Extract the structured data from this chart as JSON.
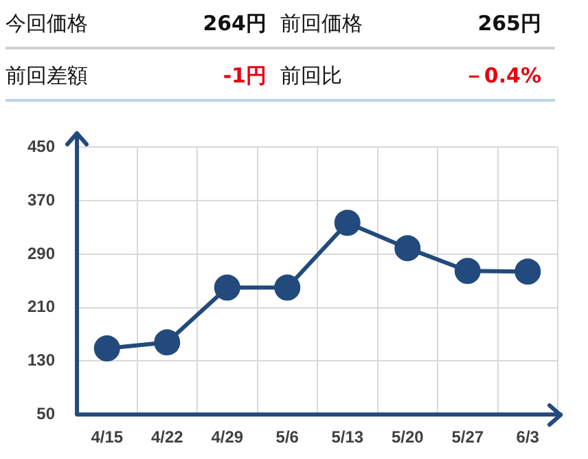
{
  "chart_data": {
    "type": "line",
    "annotations": [
      "今回価格",
      "264円",
      "前回価格",
      "265円",
      "前回差額",
      "-1円",
      "前回比",
      "－0.4%"
    ],
    "categories": [
      "4/15",
      "4/22",
      "4/29",
      "5/6",
      "5/13",
      "5/20",
      "5/27",
      "6/3"
    ],
    "series": [
      {
        "color": "#234a7c",
        "values": [
          149,
          158,
          240,
          240,
          337,
          299,
          265,
          264
        ]
      }
    ],
    "ylim": [
      50,
      450
    ],
    "yticks": [
      50,
      130,
      210,
      290,
      370,
      450
    ],
    "grid": true,
    "marker": "circle",
    "line_style": "solid"
  }
}
